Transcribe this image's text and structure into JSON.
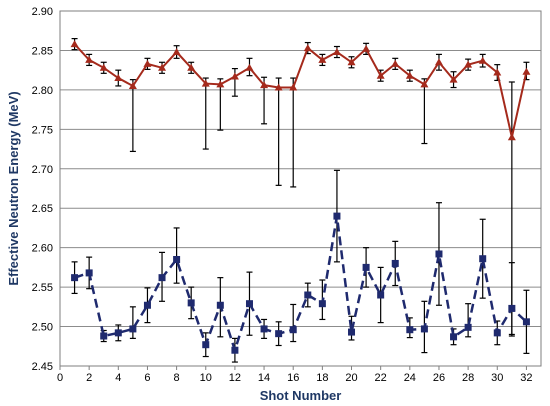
{
  "chart_data": {
    "type": "line",
    "title": "",
    "xlabel": "Shot Number",
    "ylabel": "Effective Neutron Energy (MeV)",
    "xlim": [
      0,
      33
    ],
    "ylim": [
      2.45,
      2.9
    ],
    "xticks": [
      0,
      2,
      4,
      6,
      8,
      10,
      12,
      14,
      16,
      18,
      20,
      22,
      24,
      26,
      28,
      30,
      32
    ],
    "yticks": [
      2.45,
      2.5,
      2.55,
      2.6,
      2.65,
      2.7,
      2.75,
      2.8,
      2.85,
      2.9
    ],
    "xtick_labels": [
      "0",
      "2",
      "4",
      "6",
      "8",
      "10",
      "12",
      "14",
      "16",
      "18",
      "20",
      "22",
      "24",
      "26",
      "28",
      "30",
      "32"
    ],
    "ytick_labels": [
      "2.45",
      "2.50",
      "2.55",
      "2.60",
      "2.65",
      "2.70",
      "2.75",
      "2.80",
      "2.85",
      "2.90"
    ],
    "grid": "horizontal",
    "legend": "none",
    "x": [
      1,
      2,
      3,
      4,
      5,
      6,
      7,
      8,
      9,
      10,
      11,
      12,
      13,
      14,
      15,
      16,
      17,
      18,
      19,
      20,
      21,
      22,
      23,
      24,
      25,
      26,
      27,
      28,
      29,
      30,
      31,
      32
    ],
    "series": [
      {
        "style": "solid",
        "marker": "triangle",
        "color": "#a52a1c",
        "values": [
          2.858,
          2.838,
          2.828,
          2.815,
          2.805,
          2.833,
          2.828,
          2.848,
          2.828,
          2.808,
          2.807,
          2.817,
          2.828,
          2.806,
          2.803,
          2.803,
          2.853,
          2.838,
          2.848,
          2.835,
          2.852,
          2.818,
          2.833,
          2.818,
          2.807,
          2.835,
          2.813,
          2.832,
          2.837,
          2.822,
          2.74,
          2.823
        ],
        "err_low": [
          0.007,
          0.007,
          0.007,
          0.01,
          0.083,
          0.007,
          0.007,
          0.008,
          0.007,
          0.083,
          0.058,
          0.025,
          0.01,
          0.049,
          0.124,
          0.126,
          0.007,
          0.007,
          0.007,
          0.007,
          0.007,
          0.007,
          0.007,
          0.007,
          0.075,
          0.01,
          0.01,
          0.007,
          0.008,
          0.01,
          0.25,
          0.01
        ],
        "err_high": [
          0.007,
          0.007,
          0.007,
          0.01,
          0.008,
          0.007,
          0.007,
          0.008,
          0.007,
          0.007,
          0.007,
          0.01,
          0.012,
          0.01,
          0.012,
          0.012,
          0.007,
          0.007,
          0.007,
          0.007,
          0.007,
          0.007,
          0.007,
          0.007,
          0.007,
          0.01,
          0.01,
          0.007,
          0.008,
          0.01,
          0.07,
          0.012
        ]
      },
      {
        "style": "dashed",
        "marker": "square",
        "color": "#1f2a6e",
        "values": [
          2.562,
          2.568,
          2.488,
          2.492,
          2.497,
          2.527,
          2.562,
          2.585,
          2.53,
          2.477,
          2.527,
          2.47,
          2.529,
          2.497,
          2.491,
          2.496,
          2.54,
          2.529,
          2.64,
          2.493,
          2.575,
          2.54,
          2.58,
          2.496,
          2.497,
          2.592,
          2.487,
          2.499,
          2.586,
          2.492,
          2.523,
          2.506
        ],
        "err_low": [
          0.02,
          0.02,
          0.007,
          0.01,
          0.012,
          0.022,
          0.03,
          0.03,
          0.02,
          0.015,
          0.04,
          0.015,
          0.04,
          0.012,
          0.015,
          0.015,
          0.015,
          0.02,
          0.058,
          0.01,
          0.025,
          0.035,
          0.028,
          0.01,
          0.03,
          0.065,
          0.01,
          0.012,
          0.05,
          0.015,
          0.035,
          0.04
        ],
        "err_high": [
          0.02,
          0.02,
          0.007,
          0.01,
          0.028,
          0.022,
          0.032,
          0.04,
          0.02,
          0.015,
          0.035,
          0.015,
          0.04,
          0.012,
          0.015,
          0.032,
          0.015,
          0.03,
          0.058,
          0.02,
          0.025,
          0.035,
          0.028,
          0.015,
          0.035,
          0.065,
          0.01,
          0.03,
          0.05,
          0.015,
          0.058,
          0.04
        ]
      }
    ]
  }
}
